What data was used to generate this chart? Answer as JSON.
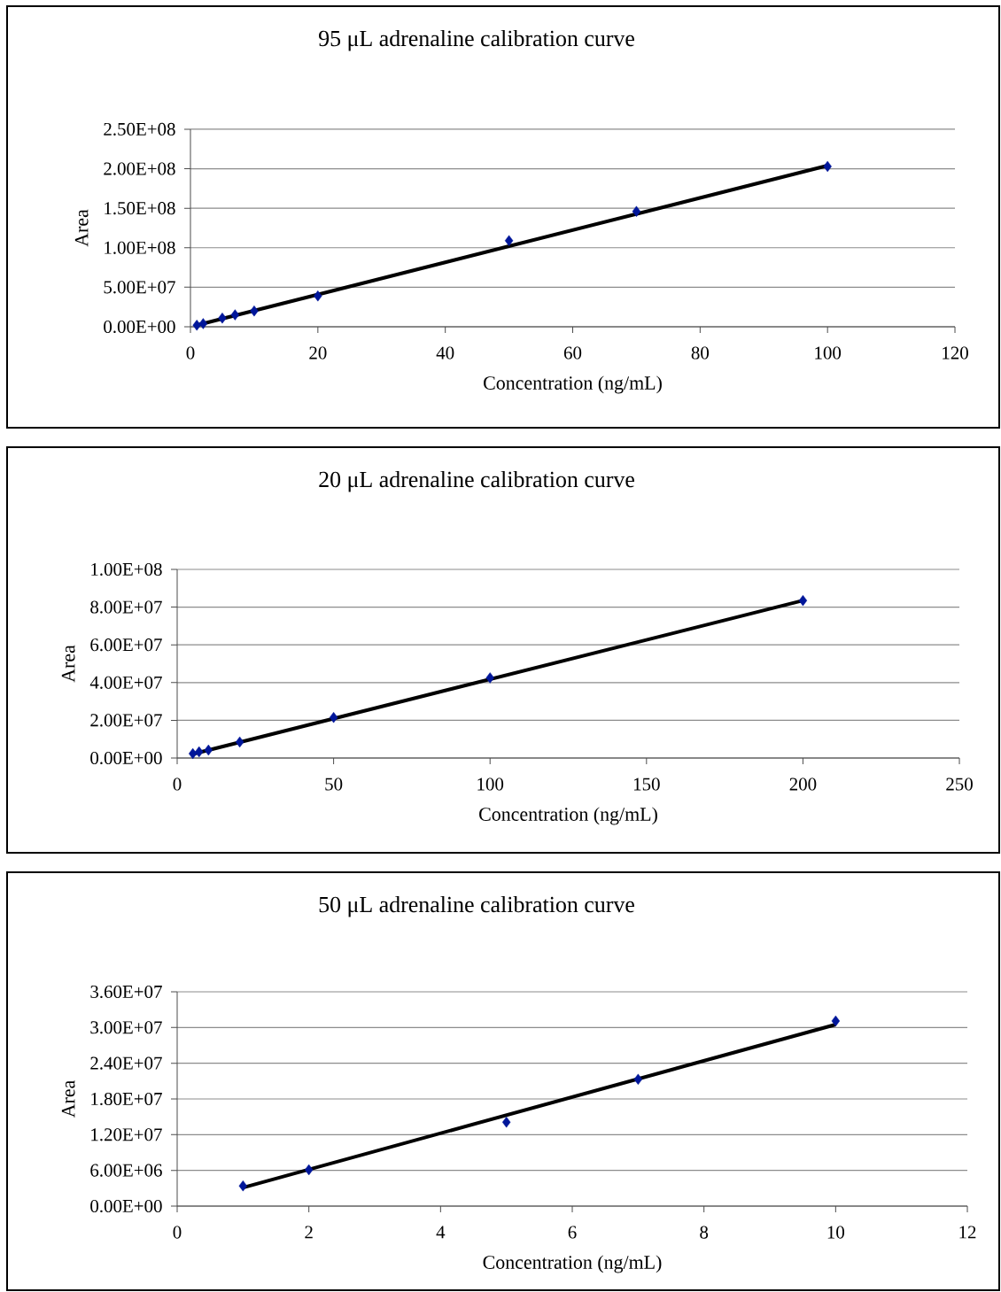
{
  "chart_data": [
    {
      "type": "scatter",
      "title": "95 μL adrenaline calibration curve",
      "xlabel": "Concentration (ng/mL)",
      "ylabel": "Area",
      "xlim": [
        0,
        120
      ],
      "ylim": [
        0,
        250000000
      ],
      "xticks": [
        0,
        20,
        40,
        60,
        80,
        100,
        120
      ],
      "yticks": [
        {
          "value": 0,
          "label": "0.00E+00"
        },
        {
          "value": 50000000,
          "label": "5.00E+07"
        },
        {
          "value": 100000000,
          "label": "1.00E+08"
        },
        {
          "value": 150000000,
          "label": "1.50E+08"
        },
        {
          "value": 200000000,
          "label": "2.00E+08"
        },
        {
          "value": 250000000,
          "label": "2.50E+08"
        }
      ],
      "grid": "y",
      "marker": "diamond",
      "series": [
        {
          "color": "#00169a",
          "x": [
            1,
            2,
            5,
            7,
            10,
            20,
            50,
            70,
            100
          ],
          "values": [
            2000000,
            4000000,
            11000000,
            15000000,
            20000000,
            39000000,
            109000000,
            146000000,
            203000000
          ]
        },
        {
          "type": "line",
          "color": "#000000",
          "marker": "none",
          "x": [
            1,
            100
          ],
          "values": [
            2000000,
            204000000
          ]
        }
      ]
    },
    {
      "type": "scatter",
      "title": "20 μL adrenaline calibration curve",
      "xlabel": "Concentration (ng/mL)",
      "ylabel": "Area",
      "xlim": [
        0,
        250
      ],
      "ylim": [
        0,
        100000000
      ],
      "xticks": [
        0,
        50,
        100,
        150,
        200,
        250
      ],
      "yticks": [
        {
          "value": 0,
          "label": "0.00E+00"
        },
        {
          "value": 20000000,
          "label": "2.00E+07"
        },
        {
          "value": 40000000,
          "label": "4.00E+07"
        },
        {
          "value": 60000000,
          "label": "6.00E+07"
        },
        {
          "value": 80000000,
          "label": "8.00E+07"
        },
        {
          "value": 100000000,
          "label": "1.00E+08"
        }
      ],
      "grid": "y",
      "marker": "diamond",
      "series": [
        {
          "color": "#00169a",
          "x": [
            5,
            7,
            10,
            20,
            50,
            100,
            200
          ],
          "values": [
            2300000,
            3300000,
            4200000,
            8500000,
            21500000,
            42500000,
            83500000
          ]
        },
        {
          "type": "line",
          "color": "#000000",
          "marker": "none",
          "x": [
            5,
            200
          ],
          "values": [
            2100000,
            83500000
          ]
        }
      ]
    },
    {
      "type": "scatter",
      "title": "50 μL adrenaline calibration curve",
      "xlabel": "Concentration (ng/mL)",
      "ylabel": "Area",
      "xlim": [
        0,
        12
      ],
      "ylim": [
        0,
        36000000
      ],
      "xticks": [
        0,
        2,
        4,
        6,
        8,
        10,
        12
      ],
      "yticks": [
        {
          "value": 0,
          "label": "0.00E+00"
        },
        {
          "value": 6000000,
          "label": "6.00E+06"
        },
        {
          "value": 12000000,
          "label": "1.20E+07"
        },
        {
          "value": 18000000,
          "label": "1.80E+07"
        },
        {
          "value": 24000000,
          "label": "2.40E+07"
        },
        {
          "value": 30000000,
          "label": "3.00E+07"
        },
        {
          "value": 36000000,
          "label": "3.60E+07"
        }
      ],
      "grid": "y",
      "marker": "diamond",
      "series": [
        {
          "color": "#00169a",
          "x": [
            1,
            2,
            5,
            7,
            10
          ],
          "values": [
            3400000,
            6100000,
            14100000,
            21300000,
            31100000
          ]
        },
        {
          "type": "line",
          "color": "#000000",
          "marker": "none",
          "x": [
            1,
            10
          ],
          "values": [
            3100000,
            30500000
          ]
        }
      ]
    }
  ]
}
